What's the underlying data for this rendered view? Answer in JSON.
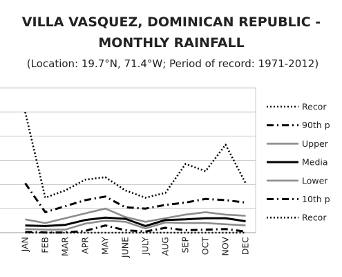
{
  "chart_data": {
    "type": "line",
    "title_line1": "VILLA VASQUEZ, DOMINICAN REPUBLIC -",
    "title_line2": "MONTHLY RAINFALL",
    "subtitle": "(Location: 19.7°N, 71.4°W; Period of record: 1971-2012)",
    "categories": [
      "JAN",
      "FEB",
      "MAR",
      "APR",
      "MAY",
      "JUNE",
      "JULY",
      "AUG",
      "SEP",
      "OCT",
      "NOV",
      "DEC"
    ],
    "ylim": [
      0,
      12
    ],
    "grid": true,
    "legend_position": "right",
    "series": [
      {
        "name": "Recor",
        "style": "dotted",
        "color": "#000000",
        "values": [
          10.0,
          2.9,
          3.5,
          4.4,
          4.6,
          3.5,
          2.9,
          3.3,
          5.7,
          5.1,
          7.3,
          4.1
        ]
      },
      {
        "name": "90th p",
        "style": "dashdot",
        "color": "#000000",
        "values": [
          4.1,
          1.7,
          2.2,
          2.7,
          3.0,
          2.1,
          2.0,
          2.3,
          2.5,
          2.8,
          2.7,
          2.5
        ]
      },
      {
        "name": "Upper",
        "style": "solid",
        "color": "#8c8c8c",
        "values": [
          1.1,
          0.8,
          1.2,
          1.6,
          2.0,
          1.3,
          0.9,
          1.2,
          1.5,
          1.7,
          1.5,
          1.4
        ]
      },
      {
        "name": "Media",
        "style": "solid",
        "color": "#000000",
        "values": [
          0.6,
          0.55,
          0.65,
          1.05,
          1.25,
          1.15,
          0.55,
          1.05,
          1.1,
          1.2,
          1.2,
          0.95
        ]
      },
      {
        "name": "Lower",
        "style": "solid",
        "color": "#8c8c8c",
        "values": [
          0.3,
          0.25,
          0.25,
          0.75,
          1.0,
          0.9,
          0.35,
          0.85,
          0.8,
          0.8,
          0.7,
          0.6
        ]
      },
      {
        "name": "10th p",
        "style": "dashdot",
        "color": "#000000",
        "values": [
          0.05,
          0.02,
          0.02,
          0.15,
          0.6,
          0.2,
          0.1,
          0.4,
          0.2,
          0.25,
          0.3,
          0.1
        ]
      },
      {
        "name": "Recor",
        "style": "dotted",
        "color": "#000000",
        "values": [
          0,
          0,
          0,
          0,
          0,
          0,
          0,
          0,
          0,
          0,
          0,
          0
        ]
      }
    ]
  }
}
